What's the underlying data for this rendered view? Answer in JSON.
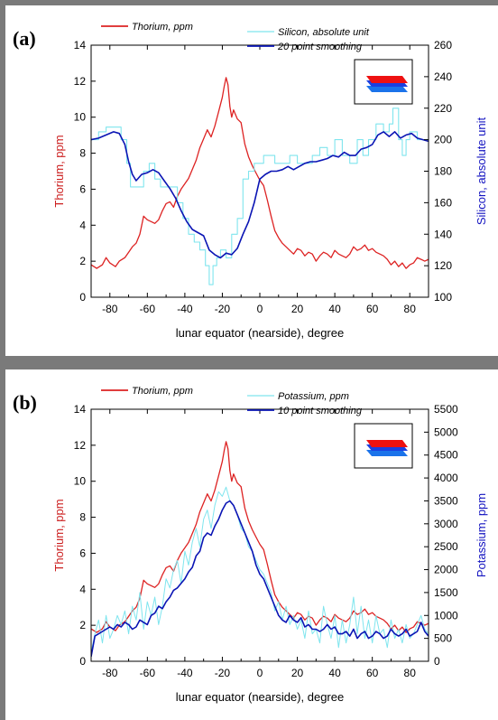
{
  "chart_data": [
    {
      "type": "line",
      "panel_label": "(a)",
      "xlabel": "lunar equator (nearside), degree",
      "ylabel_left": "Thorium, ppm",
      "ylabel_right": "Silicon, absolute unit",
      "xlim": [
        -90,
        90
      ],
      "ylim_left": [
        0,
        14
      ],
      "ylim_right": [
        100,
        260
      ],
      "x_ticks": [
        -80,
        -60,
        -40,
        -20,
        0,
        20,
        40,
        60,
        80
      ],
      "y_ticks_left": [
        0,
        2,
        4,
        6,
        8,
        10,
        12,
        14
      ],
      "y_ticks_right": [
        100,
        120,
        140,
        160,
        180,
        200,
        220,
        240,
        260
      ],
      "legend": [
        {
          "label": "Thorium, ppm",
          "color": "#dd2222"
        },
        {
          "label": "Silicon, absolute unit",
          "color": "#7fe5ee"
        },
        {
          "label": "20 point smoothing",
          "color": "#0a14b4"
        }
      ],
      "series": [
        {
          "name": "Thorium, ppm",
          "axis": "left",
          "color": "#dd2222",
          "width": 1.3,
          "x": [
            -90,
            -87,
            -84,
            -82,
            -80,
            -77,
            -75,
            -72,
            -70,
            -68,
            -66,
            -64,
            -62,
            -60,
            -58,
            -56,
            -54,
            -52,
            -50,
            -48,
            -46,
            -44,
            -42,
            -40,
            -38,
            -36,
            -34,
            -32,
            -30,
            -28,
            -26,
            -24,
            -22,
            -20,
            -19,
            -18,
            -17,
            -16,
            -15,
            -14,
            -12,
            -10,
            -8,
            -6,
            -4,
            -2,
            0,
            2,
            4,
            6,
            8,
            10,
            12,
            14,
            16,
            18,
            20,
            22,
            24,
            26,
            28,
            30,
            32,
            34,
            36,
            38,
            40,
            42,
            44,
            46,
            48,
            50,
            52,
            54,
            56,
            58,
            60,
            62,
            64,
            66,
            68,
            70,
            72,
            74,
            76,
            78,
            80,
            82,
            84,
            86,
            88,
            90
          ],
          "y": [
            1.8,
            1.6,
            1.8,
            2.2,
            1.9,
            1.7,
            2.0,
            2.2,
            2.5,
            2.8,
            3.0,
            3.5,
            4.5,
            4.3,
            4.2,
            4.1,
            4.3,
            4.8,
            5.2,
            5.3,
            5.0,
            5.6,
            6.0,
            6.3,
            6.6,
            7.1,
            7.6,
            8.3,
            8.8,
            9.3,
            8.9,
            9.5,
            10.3,
            11.1,
            11.7,
            12.2,
            11.8,
            10.6,
            10.0,
            10.4,
            9.9,
            9.7,
            8.5,
            7.8,
            7.3,
            6.9,
            6.5,
            6.2,
            5.4,
            4.5,
            3.7,
            3.3,
            3.0,
            2.8,
            2.6,
            2.4,
            2.7,
            2.6,
            2.3,
            2.5,
            2.4,
            2.0,
            2.3,
            2.5,
            2.4,
            2.2,
            2.6,
            2.4,
            2.3,
            2.2,
            2.4,
            2.8,
            2.6,
            2.7,
            2.9,
            2.6,
            2.7,
            2.5,
            2.4,
            2.3,
            2.1,
            1.8,
            2.0,
            1.7,
            1.9,
            1.6,
            1.8,
            1.9,
            2.2,
            2.1,
            2.0,
            2.1
          ]
        },
        {
          "name": "Silicon, absolute unit",
          "axis": "right",
          "color": "#7fe5ee",
          "width": 1.1,
          "step": true,
          "x": [
            -90,
            -86,
            -82,
            -78,
            -74,
            -71,
            -69,
            -66,
            -62,
            -59,
            -56,
            -53,
            -50,
            -47,
            -44,
            -41,
            -38,
            -35,
            -32,
            -29,
            -27,
            -25,
            -23,
            -21,
            -18,
            -15,
            -12,
            -9,
            -6,
            -3,
            0,
            2,
            5,
            8,
            12,
            16,
            20,
            24,
            28,
            32,
            36,
            40,
            44,
            48,
            52,
            55,
            58,
            62,
            66,
            69,
            71,
            74,
            76,
            78,
            80,
            84,
            88,
            90
          ],
          "y": [
            200,
            205,
            208,
            208,
            200,
            185,
            170,
            170,
            180,
            185,
            175,
            170,
            170,
            170,
            160,
            150,
            140,
            135,
            130,
            120,
            108,
            120,
            125,
            130,
            125,
            140,
            150,
            175,
            180,
            185,
            185,
            190,
            190,
            185,
            185,
            190,
            185,
            185,
            190,
            195,
            190,
            200,
            190,
            185,
            200,
            190,
            200,
            210,
            205,
            210,
            220,
            200,
            190,
            200,
            205,
            200,
            200,
            200
          ]
        },
        {
          "name": "20 point smoothing",
          "axis": "right",
          "color": "#0a14b4",
          "width": 1.6,
          "x": [
            -90,
            -86,
            -82,
            -78,
            -75,
            -72,
            -70,
            -68,
            -66,
            -63,
            -60,
            -57,
            -54,
            -51,
            -48,
            -45,
            -42,
            -39,
            -36,
            -33,
            -30,
            -27,
            -24,
            -21,
            -18,
            -15,
            -12,
            -9,
            -6,
            -3,
            0,
            3,
            6,
            9,
            12,
            15,
            18,
            21,
            24,
            27,
            30,
            33,
            36,
            39,
            42,
            45,
            48,
            51,
            54,
            57,
            60,
            63,
            66,
            69,
            72,
            75,
            78,
            81,
            84,
            87,
            90
          ],
          "y": [
            200,
            201,
            203,
            205,
            204,
            197,
            186,
            178,
            174,
            178,
            179,
            181,
            179,
            174,
            169,
            163,
            155,
            148,
            143,
            141,
            139,
            130,
            127,
            125,
            128,
            127,
            131,
            140,
            148,
            160,
            175,
            178,
            180,
            180,
            181,
            183,
            181,
            183,
            185,
            186,
            186,
            187,
            188,
            190,
            189,
            192,
            190,
            190,
            194,
            195,
            197,
            203,
            205,
            202,
            205,
            201,
            203,
            204,
            201,
            200,
            199
          ]
        }
      ]
    },
    {
      "type": "line",
      "panel_label": "(b)",
      "xlabel": "lunar equator (nearside), degree",
      "ylabel_left": "Thorium, ppm",
      "ylabel_right": "Potassium, ppm",
      "xlim": [
        -90,
        90
      ],
      "ylim_left": [
        0,
        14
      ],
      "ylim_right": [
        0,
        5500
      ],
      "x_ticks": [
        -80,
        -60,
        -40,
        -20,
        0,
        20,
        40,
        60,
        80
      ],
      "y_ticks_left": [
        0,
        2,
        4,
        6,
        8,
        10,
        12,
        14
      ],
      "y_ticks_right": [
        0,
        500,
        1000,
        1500,
        2000,
        2500,
        3000,
        3500,
        4000,
        4500,
        5000,
        5500
      ],
      "legend": [
        {
          "label": "Thorium, ppm",
          "color": "#dd2222"
        },
        {
          "label": "Potassium, ppm",
          "color": "#7fe5ee"
        },
        {
          "label": "10 point smoothing",
          "color": "#0a14b4"
        }
      ],
      "series": [
        {
          "name": "Thorium, ppm",
          "axis": "left",
          "color": "#dd2222",
          "width": 1.3,
          "x": [
            -90,
            -87,
            -84,
            -82,
            -80,
            -77,
            -75,
            -72,
            -70,
            -68,
            -66,
            -64,
            -62,
            -60,
            -58,
            -56,
            -54,
            -52,
            -50,
            -48,
            -46,
            -44,
            -42,
            -40,
            -38,
            -36,
            -34,
            -32,
            -30,
            -28,
            -26,
            -24,
            -22,
            -20,
            -19,
            -18,
            -17,
            -16,
            -15,
            -14,
            -12,
            -10,
            -8,
            -6,
            -4,
            -2,
            0,
            2,
            4,
            6,
            8,
            10,
            12,
            14,
            16,
            18,
            20,
            22,
            24,
            26,
            28,
            30,
            32,
            34,
            36,
            38,
            40,
            42,
            44,
            46,
            48,
            50,
            52,
            54,
            56,
            58,
            60,
            62,
            64,
            66,
            68,
            70,
            72,
            74,
            76,
            78,
            80,
            82,
            84,
            86,
            88,
            90
          ],
          "y": [
            1.8,
            1.6,
            1.8,
            2.2,
            1.9,
            1.7,
            2.0,
            2.2,
            2.5,
            2.8,
            3.0,
            3.5,
            4.5,
            4.3,
            4.2,
            4.1,
            4.3,
            4.8,
            5.2,
            5.3,
            5.0,
            5.6,
            6.0,
            6.3,
            6.6,
            7.1,
            7.6,
            8.3,
            8.8,
            9.3,
            8.9,
            9.5,
            10.3,
            11.1,
            11.7,
            12.2,
            11.8,
            10.6,
            10.0,
            10.4,
            9.9,
            9.7,
            8.5,
            7.8,
            7.3,
            6.9,
            6.5,
            6.2,
            5.4,
            4.5,
            3.7,
            3.3,
            3.0,
            2.8,
            2.6,
            2.4,
            2.7,
            2.6,
            2.3,
            2.5,
            2.4,
            2.0,
            2.3,
            2.5,
            2.4,
            2.2,
            2.6,
            2.4,
            2.3,
            2.2,
            2.4,
            2.8,
            2.6,
            2.7,
            2.9,
            2.6,
            2.7,
            2.5,
            2.4,
            2.3,
            2.1,
            1.8,
            2.0,
            1.7,
            1.9,
            1.6,
            1.8,
            1.9,
            2.2,
            2.1,
            2.0,
            2.1
          ]
        },
        {
          "name": "Potassium, ppm",
          "axis": "right",
          "color": "#7fe5ee",
          "width": 1.0,
          "x": [
            -90,
            -88,
            -86,
            -84,
            -82,
            -80,
            -78,
            -76,
            -74,
            -72,
            -70,
            -68,
            -66,
            -64,
            -62,
            -60,
            -58,
            -56,
            -54,
            -52,
            -50,
            -48,
            -46,
            -44,
            -42,
            -40,
            -38,
            -36,
            -34,
            -32,
            -30,
            -28,
            -26,
            -24,
            -22,
            -20,
            -18,
            -16,
            -14,
            -12,
            -10,
            -8,
            -6,
            -4,
            -2,
            0,
            2,
            4,
            6,
            8,
            10,
            12,
            14,
            16,
            18,
            20,
            22,
            24,
            26,
            28,
            30,
            32,
            34,
            36,
            38,
            40,
            42,
            44,
            46,
            48,
            50,
            52,
            54,
            56,
            58,
            60,
            62,
            64,
            66,
            68,
            70,
            72,
            74,
            76,
            78,
            80,
            82,
            84,
            86,
            88,
            90
          ],
          "y": [
            200,
            600,
            900,
            400,
            1000,
            500,
            700,
            1000,
            800,
            1100,
            600,
            1200,
            900,
            1500,
            700,
            1300,
            1000,
            1400,
            800,
            1200,
            1800,
            1600,
            2000,
            2200,
            1700,
            2400,
            2100,
            2600,
            2900,
            2500,
            3100,
            3300,
            2900,
            3400,
            3700,
            3600,
            3800,
            3500,
            3400,
            3200,
            2900,
            2800,
            2500,
            2400,
            2200,
            2000,
            1900,
            1700,
            1500,
            1100,
            1300,
            900,
            1200,
            800,
            1000,
            700,
            900,
            500,
            1100,
            600,
            700,
            400,
            1200,
            800,
            500,
            1000,
            300,
            900,
            400,
            800,
            1400,
            600,
            1200,
            500,
            900,
            400,
            1000,
            600,
            700,
            300,
            900,
            500,
            700,
            400,
            800,
            500,
            600,
            800,
            1000,
            700,
            600
          ]
        },
        {
          "name": "10 point smoothing",
          "axis": "right",
          "color": "#0a14b4",
          "width": 1.6,
          "x": [
            -90,
            -88,
            -86,
            -84,
            -82,
            -80,
            -78,
            -76,
            -74,
            -72,
            -70,
            -68,
            -66,
            -64,
            -62,
            -60,
            -58,
            -56,
            -54,
            -52,
            -50,
            -48,
            -46,
            -44,
            -42,
            -40,
            -38,
            -36,
            -34,
            -32,
            -30,
            -28,
            -26,
            -24,
            -22,
            -20,
            -18,
            -16,
            -14,
            -12,
            -10,
            -8,
            -6,
            -4,
            -2,
            0,
            2,
            4,
            6,
            8,
            10,
            12,
            14,
            16,
            18,
            20,
            22,
            24,
            26,
            28,
            30,
            32,
            34,
            36,
            38,
            40,
            42,
            44,
            46,
            48,
            50,
            52,
            54,
            56,
            58,
            60,
            62,
            64,
            66,
            68,
            70,
            72,
            74,
            76,
            78,
            80,
            82,
            84,
            86,
            88,
            90
          ],
          "y": [
            100,
            550,
            600,
            650,
            700,
            750,
            700,
            800,
            750,
            850,
            800,
            700,
            750,
            900,
            850,
            800,
            1000,
            1050,
            1200,
            1150,
            1300,
            1400,
            1550,
            1600,
            1700,
            1800,
            1950,
            2050,
            2300,
            2400,
            2700,
            2800,
            2750,
            2950,
            3100,
            3300,
            3450,
            3500,
            3400,
            3200,
            3000,
            2800,
            2600,
            2400,
            2100,
            1900,
            1800,
            1600,
            1400,
            1200,
            1000,
            900,
            850,
            1000,
            900,
            850,
            950,
            750,
            800,
            700,
            700,
            650,
            700,
            800,
            700,
            750,
            600,
            600,
            650,
            550,
            700,
            500,
            600,
            650,
            500,
            550,
            650,
            600,
            500,
            550,
            700,
            600,
            550,
            600,
            700,
            550,
            600,
            650,
            850,
            650,
            550
          ]
        }
      ]
    }
  ]
}
